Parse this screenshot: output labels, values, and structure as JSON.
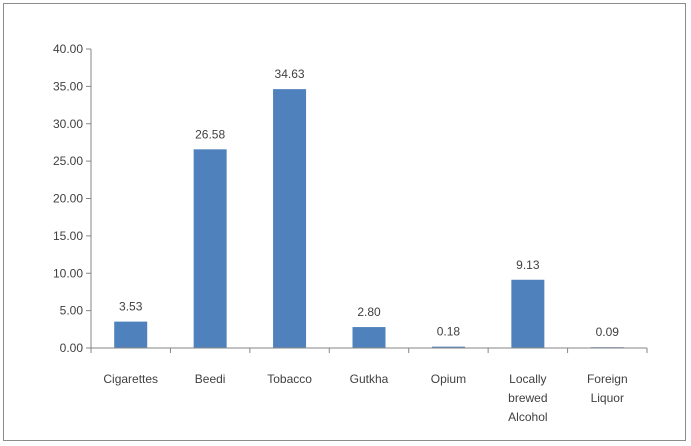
{
  "chart_data": {
    "type": "bar",
    "categories": [
      [
        "Cigarettes"
      ],
      [
        "Beedi"
      ],
      [
        "Tobacco"
      ],
      [
        "Gutkha"
      ],
      [
        "Opium"
      ],
      [
        "Locally",
        "brewed",
        "Alcohol"
      ],
      [
        "Foreign",
        "Liquor"
      ]
    ],
    "values": [
      3.53,
      26.58,
      34.63,
      2.8,
      0.18,
      9.13,
      0.09
    ],
    "data_labels": [
      "3.53",
      "26.58",
      "34.63",
      "2.80",
      "0.18",
      "9.13",
      "0.09"
    ],
    "y_ticks": [
      "0.00",
      "5.00",
      "10.00",
      "15.00",
      "20.00",
      "25.00",
      "30.00",
      "35.00",
      "40.00"
    ],
    "ylim": [
      0,
      40
    ],
    "title": "",
    "xlabel": "",
    "ylabel": "",
    "grid": false,
    "legend": "none",
    "bar_color": "#4f81bd",
    "axis_color": "#868686"
  }
}
